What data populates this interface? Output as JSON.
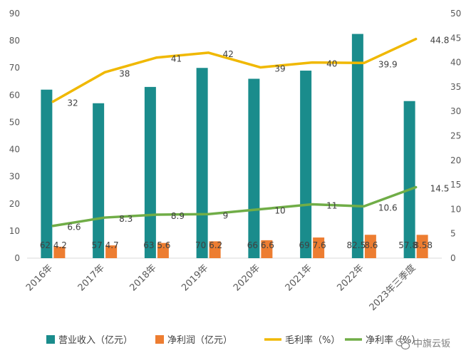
{
  "chart_data": {
    "type": "bar",
    "categories": [
      "2016年",
      "2017年",
      "2018年",
      "2019年",
      "2020年",
      "2021年",
      "2022年",
      "2023年三季度"
    ],
    "series": [
      {
        "name": "营业收入（亿元）",
        "type": "bar",
        "axis": "left",
        "color": "#1a8c8c",
        "values": [
          62,
          57,
          63,
          70,
          66,
          69,
          82.5,
          57.8
        ],
        "labels": [
          "62",
          "57",
          "63",
          "70",
          "66",
          "69",
          "82.5",
          "57.8"
        ]
      },
      {
        "name": "净利润（亿元）",
        "type": "bar",
        "axis": "left",
        "color": "#ed7d31",
        "values": [
          4.2,
          4.7,
          5.6,
          6.2,
          6.6,
          7.6,
          8.6,
          8.58
        ],
        "labels": [
          "4.2",
          "4.7",
          "5.6",
          "6.2",
          "6.6",
          "7.6",
          "8.6",
          "8.58"
        ]
      },
      {
        "name": "毛利率（%）",
        "type": "line",
        "axis": "right",
        "color": "#f0b800",
        "values": [
          32,
          38,
          41,
          42,
          39,
          40,
          39.9,
          44.8
        ],
        "labels": [
          "32",
          "38",
          "41",
          "42",
          "39",
          "40",
          "39.9",
          "44.8"
        ]
      },
      {
        "name": "净利率（%）",
        "type": "line",
        "axis": "right",
        "color": "#70ad47",
        "values": [
          6.6,
          8.3,
          8.9,
          9,
          10,
          11,
          10.6,
          14.5
        ],
        "labels": [
          "6.6",
          "8.3",
          "8.9",
          "9",
          "10",
          "11",
          "10.6",
          "14.5"
        ]
      }
    ],
    "ylim_left": [
      0,
      90
    ],
    "yticks_left": [
      "0",
      "10",
      "20",
      "30",
      "40",
      "50",
      "60",
      "70",
      "80",
      "90"
    ],
    "ylim_right": [
      0,
      50
    ],
    "yticks_right": [
      "0",
      "5",
      "10",
      "15",
      "20",
      "25",
      "30",
      "35",
      "40",
      "45",
      "50"
    ],
    "grid": false,
    "legend_position": "bottom"
  },
  "watermark": {
    "icon": "wechat-icon",
    "text": "中旗云钣"
  }
}
